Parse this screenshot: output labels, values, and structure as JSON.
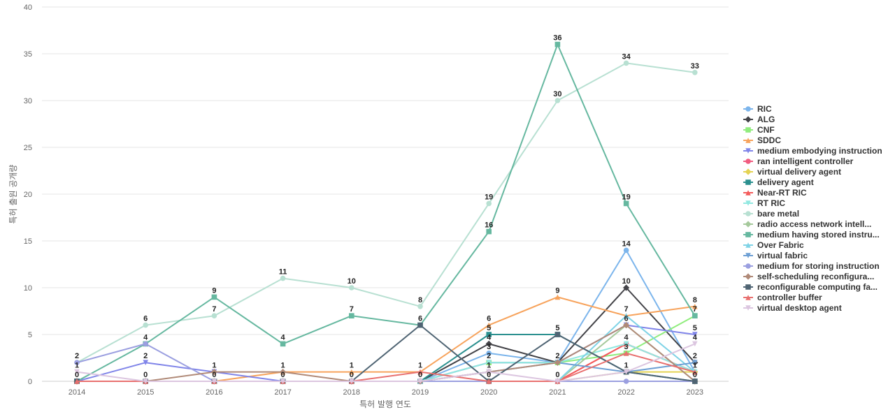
{
  "chart_data": {
    "type": "line",
    "title": "",
    "xlabel": "특허 발행 연도",
    "ylabel": "특허 출원 공개량",
    "x": [
      2014,
      2015,
      2016,
      2017,
      2018,
      2019,
      2020,
      2021,
      2022,
      2023
    ],
    "ylim": [
      0,
      40
    ],
    "yticks": [
      0,
      5,
      10,
      15,
      20,
      25,
      30,
      35,
      40
    ],
    "grid": true,
    "legend_position": "right",
    "series": [
      {
        "name": "RIC",
        "color": "#7cb5ec",
        "marker": "circle",
        "values": [
          0,
          0,
          0,
          0,
          0,
          0,
          3,
          2,
          14,
          1
        ]
      },
      {
        "name": "ALG",
        "color": "#434348",
        "marker": "diamond",
        "values": [
          0,
          0,
          0,
          0,
          0,
          0,
          4,
          2,
          10,
          2
        ]
      },
      {
        "name": "CNF",
        "color": "#90ed7d",
        "marker": "square",
        "values": [
          0,
          0,
          0,
          0,
          0,
          0,
          2,
          2,
          3,
          7
        ]
      },
      {
        "name": "SDDC",
        "color": "#f7a35c",
        "marker": "triangle",
        "values": [
          0,
          0,
          0,
          1,
          1,
          1,
          6,
          9,
          7,
          8
        ]
      },
      {
        "name": "medium embodying instruction",
        "color": "#8085e9",
        "marker": "triangle-down",
        "values": [
          0,
          2,
          1,
          0,
          0,
          0,
          2,
          2,
          6,
          5
        ]
      },
      {
        "name": "ran intelligent controller",
        "color": "#f15c80",
        "marker": "circle",
        "values": [
          0,
          0,
          0,
          0,
          0,
          0,
          0,
          0,
          4,
          1
        ]
      },
      {
        "name": "virtual delivery agent",
        "color": "#e4d354",
        "marker": "diamond",
        "values": [
          0,
          0,
          0,
          0,
          0,
          0,
          0,
          0,
          1,
          1
        ]
      },
      {
        "name": "delivery agent",
        "color": "#2b908f",
        "marker": "square",
        "values": [
          0,
          0,
          0,
          0,
          0,
          0,
          5,
          5,
          1,
          0
        ]
      },
      {
        "name": "Near-RT RIC",
        "color": "#f45b5b",
        "marker": "triangle",
        "values": [
          0,
          0,
          0,
          0,
          0,
          0,
          0,
          0,
          4,
          1
        ]
      },
      {
        "name": "RT RIC",
        "color": "#91e8e1",
        "marker": "triangle-down",
        "values": [
          0,
          0,
          0,
          0,
          0,
          0,
          2,
          2,
          4,
          1
        ]
      },
      {
        "name": "bare metal",
        "color": "#b8e0d2",
        "marker": "circle",
        "values": [
          2,
          6,
          7,
          11,
          10,
          8,
          19,
          30,
          34,
          33
        ]
      },
      {
        "name": "radio access network intell...",
        "color": "#a6c99c",
        "marker": "diamond",
        "values": [
          0,
          0,
          0,
          0,
          0,
          0,
          0,
          0,
          6,
          0
        ]
      },
      {
        "name": "medium having stored instru...",
        "color": "#66b8a0",
        "marker": "square",
        "values": [
          0,
          4,
          9,
          4,
          7,
          6,
          16,
          36,
          19,
          7
        ]
      },
      {
        "name": "Over Fabric",
        "color": "#7fd3e6",
        "marker": "triangle",
        "values": [
          0,
          0,
          0,
          0,
          0,
          0,
          0,
          0,
          7,
          1
        ]
      },
      {
        "name": "virtual fabric",
        "color": "#6d9fd4",
        "marker": "triangle-down",
        "values": [
          0,
          0,
          0,
          0,
          0,
          0,
          1,
          2,
          1,
          2
        ]
      },
      {
        "name": "medium for storing instruction",
        "color": "#9b9fe0",
        "marker": "circle",
        "values": [
          2,
          4,
          0,
          0,
          0,
          0,
          0,
          0,
          0,
          0
        ]
      },
      {
        "name": "self-scheduling reconfigura...",
        "color": "#b08a78",
        "marker": "diamond",
        "values": [
          0,
          0,
          1,
          1,
          0,
          0,
          1,
          2,
          6,
          0
        ]
      },
      {
        "name": "reconfigurable computing fa...",
        "color": "#4f6473",
        "marker": "square",
        "values": [
          0,
          0,
          0,
          0,
          0,
          6,
          0,
          5,
          1,
          0
        ]
      },
      {
        "name": "controller buffer",
        "color": "#e8706f",
        "marker": "triangle",
        "values": [
          0,
          0,
          0,
          0,
          0,
          1,
          0,
          0,
          3,
          1
        ]
      },
      {
        "name": "virtual desktop agent",
        "color": "#dcc6e0",
        "marker": "triangle-down",
        "values": [
          1,
          0,
          0,
          0,
          0,
          0,
          1,
          0,
          1,
          4
        ]
      }
    ],
    "data_labels": [
      {
        "x": 2014,
        "text": "2",
        "y": 2
      },
      {
        "x": 2014,
        "text": "1",
        "y": 1
      },
      {
        "x": 2014,
        "text": "0",
        "y": 0
      },
      {
        "x": 2015,
        "text": "6",
        "y": 6
      },
      {
        "x": 2015,
        "text": "4",
        "y": 4
      },
      {
        "x": 2015,
        "text": "2",
        "y": 2
      },
      {
        "x": 2015,
        "text": "0",
        "y": 0
      },
      {
        "x": 2016,
        "text": "9",
        "y": 9
      },
      {
        "x": 2016,
        "text": "7",
        "y": 7
      },
      {
        "x": 2016,
        "text": "1",
        "y": 1
      },
      {
        "x": 2016,
        "text": "0",
        "y": 0
      },
      {
        "x": 2017,
        "text": "11",
        "y": 11
      },
      {
        "x": 2017,
        "text": "4",
        "y": 4
      },
      {
        "x": 2017,
        "text": "1",
        "y": 1
      },
      {
        "x": 2017,
        "text": "0",
        "y": 0
      },
      {
        "x": 2018,
        "text": "10",
        "y": 10
      },
      {
        "x": 2018,
        "text": "7",
        "y": 7
      },
      {
        "x": 2018,
        "text": "1",
        "y": 1
      },
      {
        "x": 2018,
        "text": "0",
        "y": 0
      },
      {
        "x": 2019,
        "text": "8",
        "y": 8
      },
      {
        "x": 2019,
        "text": "6",
        "y": 6
      },
      {
        "x": 2019,
        "text": "1",
        "y": 1
      },
      {
        "x": 2019,
        "text": "0",
        "y": 0
      },
      {
        "x": 2020,
        "text": "19",
        "y": 19
      },
      {
        "x": 2020,
        "text": "16",
        "y": 16
      },
      {
        "x": 2020,
        "text": "6",
        "y": 6
      },
      {
        "x": 2020,
        "text": "5",
        "y": 5
      },
      {
        "x": 2020,
        "text": "4",
        "y": 4
      },
      {
        "x": 2020,
        "text": "3",
        "y": 3
      },
      {
        "x": 2020,
        "text": "2",
        "y": 2
      },
      {
        "x": 2020,
        "text": "1",
        "y": 1
      },
      {
        "x": 2020,
        "text": "0",
        "y": 0
      },
      {
        "x": 2021,
        "text": "36",
        "y": 36
      },
      {
        "x": 2021,
        "text": "30",
        "y": 30
      },
      {
        "x": 2021,
        "text": "9",
        "y": 9
      },
      {
        "x": 2021,
        "text": "5",
        "y": 5
      },
      {
        "x": 2021,
        "text": "2",
        "y": 2
      },
      {
        "x": 2021,
        "text": "0",
        "y": 0
      },
      {
        "x": 2022,
        "text": "34",
        "y": 34
      },
      {
        "x": 2022,
        "text": "19",
        "y": 19
      },
      {
        "x": 2022,
        "text": "14",
        "y": 14
      },
      {
        "x": 2022,
        "text": "10",
        "y": 10
      },
      {
        "x": 2022,
        "text": "7",
        "y": 7
      },
      {
        "x": 2022,
        "text": "6",
        "y": 6
      },
      {
        "x": 2022,
        "text": "4",
        "y": 4
      },
      {
        "x": 2022,
        "text": "3",
        "y": 3
      },
      {
        "x": 2022,
        "text": "1",
        "y": 1
      },
      {
        "x": 2023,
        "text": "33",
        "y": 33
      },
      {
        "x": 2023,
        "text": "8",
        "y": 8
      },
      {
        "x": 2023,
        "text": "7",
        "y": 7
      },
      {
        "x": 2023,
        "text": "5",
        "y": 5
      },
      {
        "x": 2023,
        "text": "4",
        "y": 4
      },
      {
        "x": 2023,
        "text": "2",
        "y": 2
      },
      {
        "x": 2023,
        "text": "1",
        "y": 1
      },
      {
        "x": 2023,
        "text": "0",
        "y": 0
      }
    ]
  }
}
